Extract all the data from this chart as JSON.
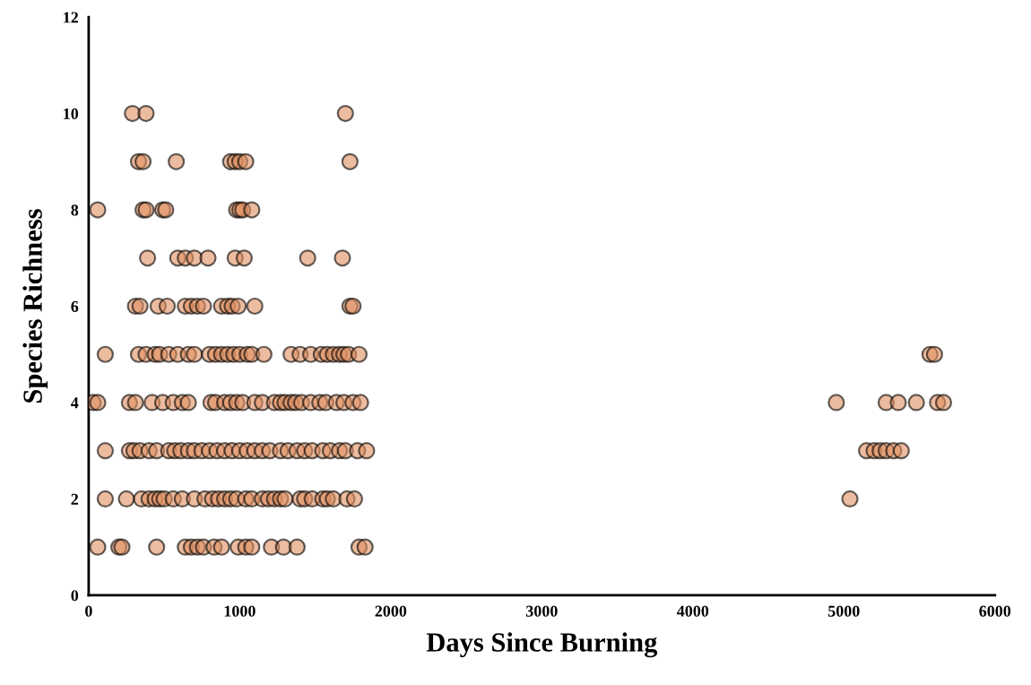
{
  "chart_data": {
    "type": "scatter",
    "xlabel": "Days Since Burning",
    "ylabel": "Species Richness",
    "xlim": [
      0,
      6000
    ],
    "xticks": [
      0,
      1000,
      2000,
      3000,
      4000,
      5000,
      6000
    ],
    "ylim": [
      0,
      12
    ],
    "yticks": [
      0,
      2,
      4,
      6,
      8,
      10,
      12
    ],
    "grid": false,
    "marker": "circle",
    "series": [
      {
        "color": "#e09060",
        "x": [
          290,
          380,
          1700,
          330,
          360,
          580,
          940,
          970,
          1000,
          1040,
          1730,
          60,
          360,
          380,
          490,
          510,
          980,
          1000,
          1020,
          1080,
          390,
          590,
          640,
          700,
          790,
          970,
          1030,
          1450,
          1680,
          310,
          340,
          460,
          520,
          640,
          680,
          720,
          760,
          880,
          920,
          950,
          990,
          1100,
          1730,
          1750,
          110,
          330,
          380,
          440,
          470,
          530,
          590,
          660,
          700,
          800,
          840,
          880,
          920,
          960,
          1000,
          1050,
          1080,
          1160,
          1340,
          1400,
          1470,
          1540,
          1580,
          1620,
          1660,
          1690,
          1720,
          1790,
          5570,
          5600,
          30,
          60,
          270,
          310,
          420,
          490,
          560,
          620,
          660,
          810,
          840,
          900,
          940,
          980,
          1020,
          1100,
          1150,
          1230,
          1270,
          1300,
          1340,
          1370,
          1410,
          1470,
          1530,
          1570,
          1640,
          1690,
          1750,
          1800,
          4950,
          5280,
          5360,
          5480,
          5620,
          5660,
          110,
          270,
          300,
          340,
          400,
          450,
          530,
          570,
          610,
          660,
          700,
          750,
          800,
          850,
          900,
          950,
          1000,
          1050,
          1100,
          1150,
          1200,
          1270,
          1320,
          1380,
          1430,
          1480,
          1550,
          1600,
          1660,
          1700,
          1780,
          1840,
          5150,
          5200,
          5240,
          5280,
          5330,
          5380,
          110,
          250,
          350,
          400,
          440,
          470,
          500,
          560,
          620,
          700,
          770,
          820,
          860,
          900,
          940,
          980,
          1040,
          1080,
          1150,
          1190,
          1230,
          1270,
          1300,
          1400,
          1430,
          1480,
          1550,
          1580,
          1620,
          1710,
          1760,
          5040,
          60,
          200,
          220,
          450,
          640,
          680,
          720,
          760,
          830,
          880,
          990,
          1040,
          1080,
          1210,
          1290,
          1380,
          1790,
          1830
        ],
        "values": [
          10,
          10,
          10,
          9,
          9,
          9,
          9,
          9,
          9,
          9,
          9,
          8,
          8,
          8,
          8,
          8,
          8,
          8,
          8,
          8,
          7,
          7,
          7,
          7,
          7,
          7,
          7,
          7,
          7,
          6,
          6,
          6,
          6,
          6,
          6,
          6,
          6,
          6,
          6,
          6,
          6,
          6,
          6,
          6,
          5,
          5,
          5,
          5,
          5,
          5,
          5,
          5,
          5,
          5,
          5,
          5,
          5,
          5,
          5,
          5,
          5,
          5,
          5,
          5,
          5,
          5,
          5,
          5,
          5,
          5,
          5,
          5,
          5,
          5,
          4,
          4,
          4,
          4,
          4,
          4,
          4,
          4,
          4,
          4,
          4,
          4,
          4,
          4,
          4,
          4,
          4,
          4,
          4,
          4,
          4,
          4,
          4,
          4,
          4,
          4,
          4,
          4,
          4,
          4,
          4,
          4,
          4,
          4,
          4,
          4,
          3,
          3,
          3,
          3,
          3,
          3,
          3,
          3,
          3,
          3,
          3,
          3,
          3,
          3,
          3,
          3,
          3,
          3,
          3,
          3,
          3,
          3,
          3,
          3,
          3,
          3,
          3,
          3,
          3,
          3,
          3,
          3,
          3,
          3,
          3,
          3,
          3,
          3,
          2,
          2,
          2,
          2,
          2,
          2,
          2,
          2,
          2,
          2,
          2,
          2,
          2,
          2,
          2,
          2,
          2,
          2,
          2,
          2,
          2,
          2,
          2,
          2,
          2,
          2,
          2,
          2,
          2,
          2,
          2,
          2,
          1,
          1,
          1,
          1,
          1,
          1,
          1,
          1,
          1,
          1,
          1,
          1,
          1,
          1,
          1,
          1,
          1,
          1
        ]
      }
    ]
  }
}
